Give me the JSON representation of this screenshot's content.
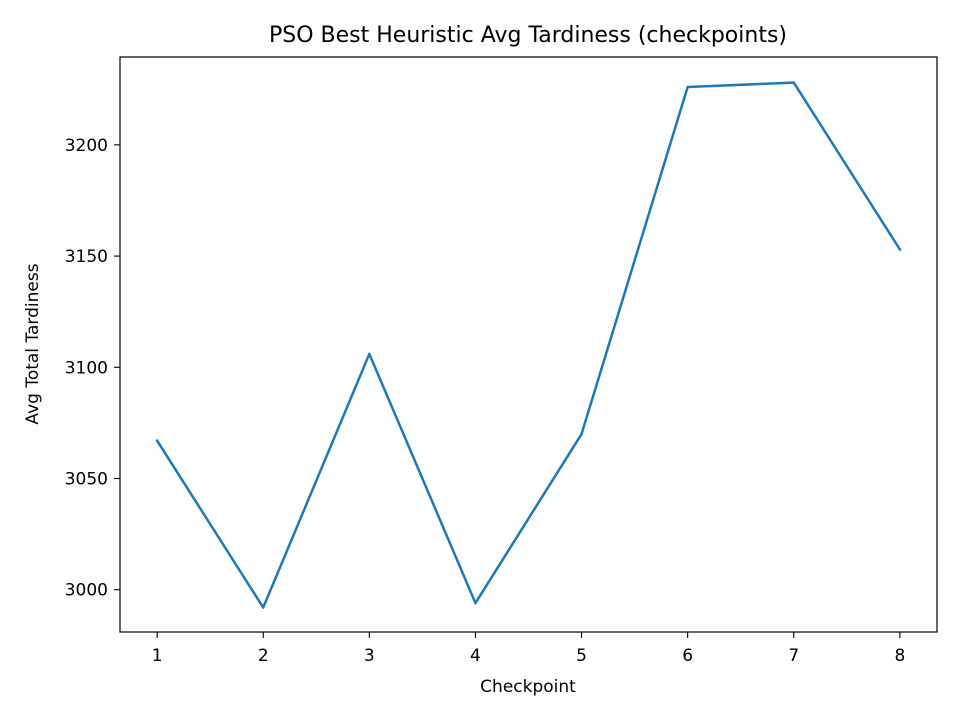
{
  "chart_data": {
    "type": "line",
    "title": "PSO Best Heuristic Avg Tardiness (checkpoints)",
    "xlabel": "Checkpoint",
    "ylabel": "Avg Total Tardiness",
    "x": [
      1,
      2,
      3,
      4,
      5,
      6,
      7,
      8
    ],
    "series": [
      {
        "values": [
          3067,
          2992,
          3106,
          2994,
          3070,
          3226,
          3228,
          3153
        ],
        "color": "#1f77b4"
      }
    ],
    "xlim": [
      0.65,
      8.35
    ],
    "ylim": [
      2981,
      3239.5
    ],
    "xticks": [
      1,
      2,
      3,
      4,
      5,
      6,
      7,
      8
    ],
    "yticks": [
      3000,
      3050,
      3100,
      3150,
      3200
    ],
    "grid": false,
    "legend": "none"
  }
}
